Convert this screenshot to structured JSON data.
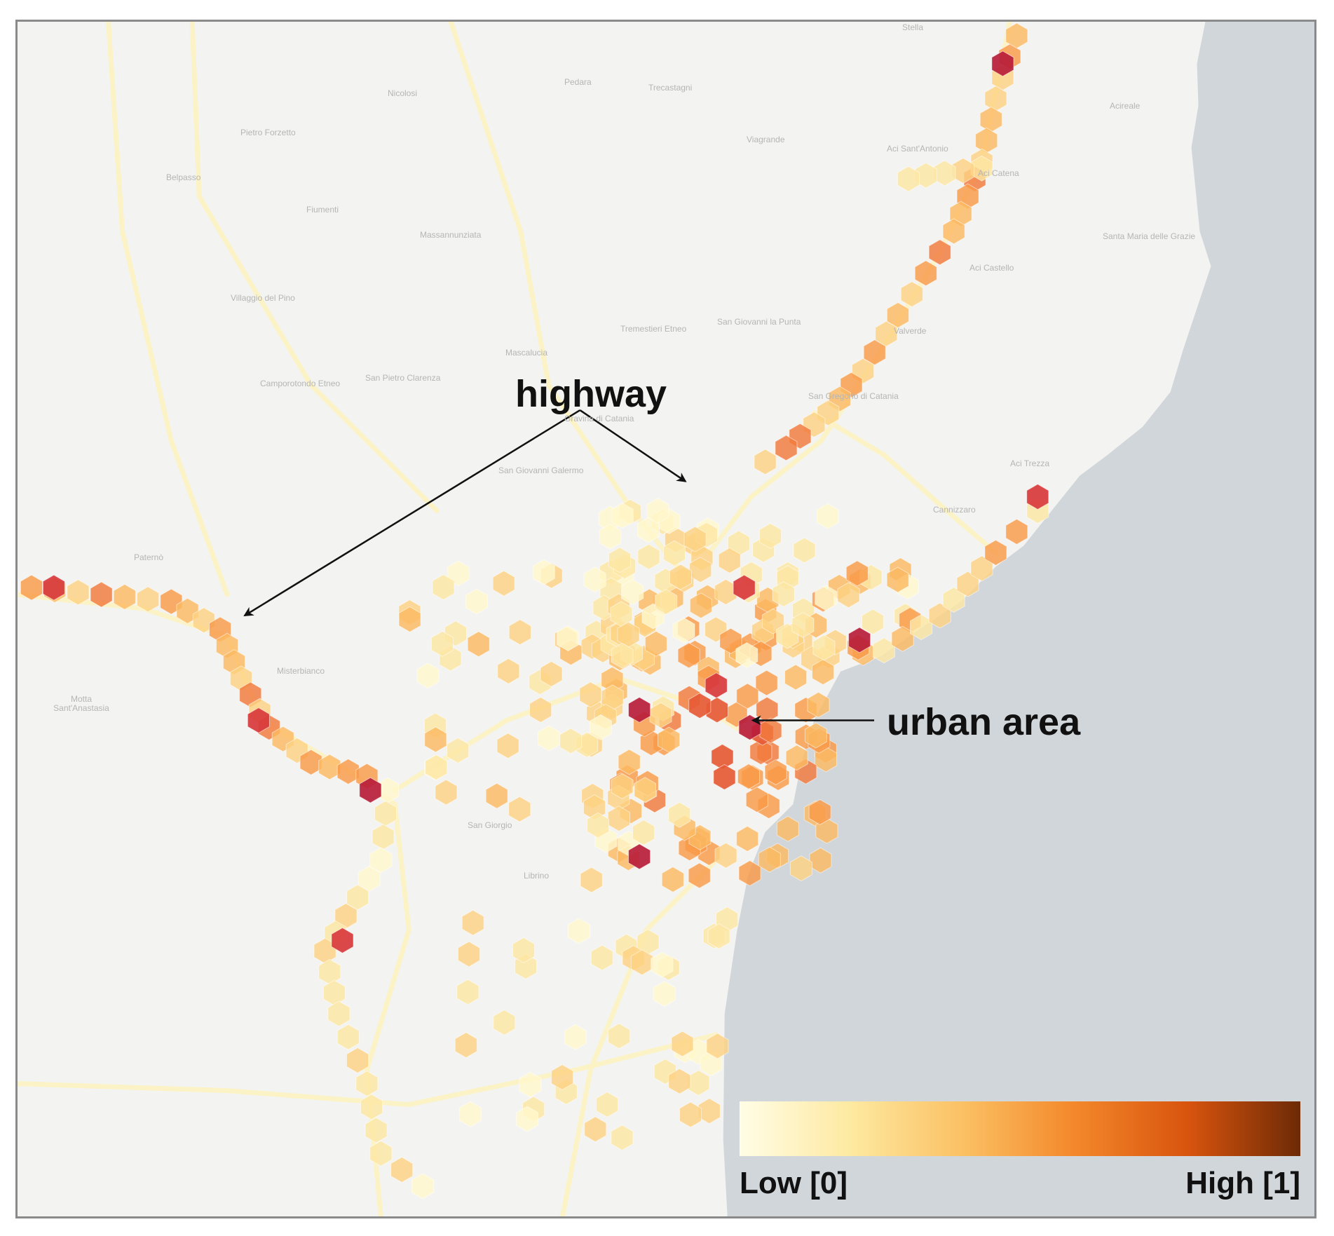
{
  "annotations": {
    "highway": "highway",
    "urban_area": "urban area"
  },
  "legend": {
    "low_label": "Low [0]",
    "high_label": "High [1]",
    "colors": [
      "#fffde6",
      "#fde9a0",
      "#fbc063",
      "#f3872a",
      "#d8540e",
      "#6d2a06"
    ]
  },
  "colors": {
    "sea": "#d1d6da",
    "land": "#f3f3f1",
    "hex_stops": [
      "#fff8cc",
      "#fde7a3",
      "#fdd282",
      "#fbb962",
      "#f99a48",
      "#f27a3c",
      "#e65b36",
      "#d83a3c",
      "#b81d3a"
    ]
  },
  "place_labels": [
    "Stella",
    "Trecastagni",
    "Pedara",
    "Nicolosi",
    "Acireale",
    "Pietro Forzetto",
    "Viagrande",
    "Aci Sant'Antonio",
    "Aci Catena",
    "Belpasso",
    "Fiumenti",
    "Massannunziata",
    "Santa Maria delle Grazie",
    "Aci Castello",
    "Villaggio del Pino",
    "Tremestieri Etneo",
    "San Giovanni la Punta",
    "Valverde",
    "Camporotondo Etneo",
    "San Pietro Clarenza",
    "San Gregorio di Catania",
    "Gravina di Catania",
    "Mascalucia",
    "San Giovanni Galermo",
    "Aci Trezza",
    "Cannizzaro",
    "Paternò",
    "Misterbianco",
    "Motta Sant'Anastasia",
    "San Giorgio",
    "Librino"
  ]
}
